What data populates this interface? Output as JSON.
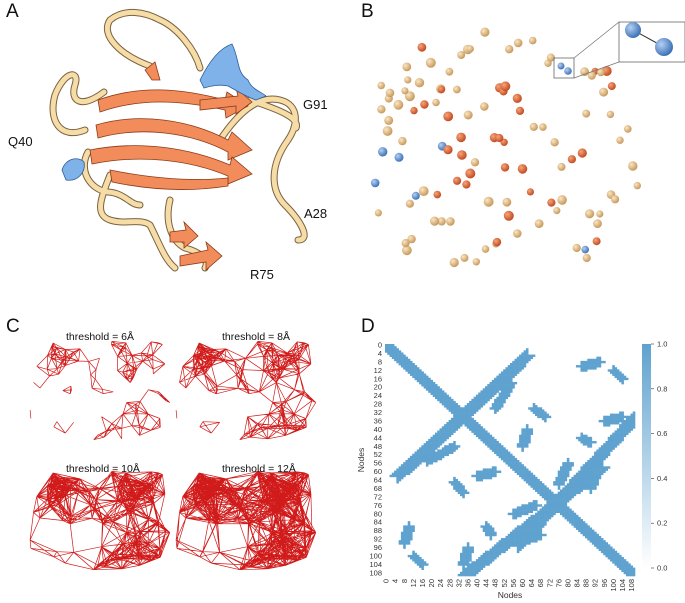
{
  "panels": {
    "a": {
      "letter": "A",
      "residues": [
        "G91",
        "Q40",
        "A28",
        "R75"
      ]
    },
    "b": {
      "letter": "B"
    },
    "c": {
      "letter": "C",
      "thresholds": [
        "threshold = 6Å",
        "threshold = 8Å",
        "threshold = 10Å",
        "threshold = 12Å"
      ]
    },
    "d": {
      "letter": "D"
    }
  },
  "colors": {
    "helix": "#7fb2e8",
    "sheet": "#f28c5a",
    "coil": "#f6dca6",
    "network": "#d11a1a",
    "heatmap": "#5fa2cf",
    "node_tan": "#d9b47f",
    "node_orange": "#e06a3a",
    "node_blue": "#6f9fd8"
  },
  "chart_data": {
    "type": "heatmap",
    "title": "",
    "xlabel": "Nodes",
    "ylabel": "Nodes",
    "n_nodes": 110,
    "x_ticks": [
      "0",
      "4",
      "8",
      "12",
      "16",
      "20",
      "24",
      "28",
      "32",
      "36",
      "40",
      "44",
      "48",
      "52",
      "56",
      "60",
      "64",
      "68",
      "72",
      "76",
      "80",
      "84",
      "88",
      "92",
      "96",
      "100",
      "104",
      "108"
    ],
    "y_ticks": [
      "0",
      "4",
      "8",
      "12",
      "16",
      "20",
      "24",
      "28",
      "32",
      "36",
      "40",
      "44",
      "48",
      "52",
      "56",
      "60",
      "64",
      "68",
      "72",
      "76",
      "80",
      "84",
      "88",
      "92",
      "96",
      "100",
      "104",
      "108"
    ],
    "colorbar_ticks": [
      "0.0",
      "0.2",
      "0.4",
      "0.6",
      "0.8",
      "1.0"
    ],
    "value_range": [
      0,
      1
    ],
    "contact_segments": [
      {
        "from": [
          0,
          0
        ],
        "to": [
          109,
          109
        ],
        "width": 3
      },
      {
        "from": [
          5,
          62
        ],
        "to": [
          58,
          10
        ],
        "width": 3
      },
      {
        "from": [
          35,
          109
        ],
        "to": [
          95,
          58
        ],
        "width": 3
      },
      {
        "from": [
          18,
          55
        ],
        "to": [
          30,
          48
        ],
        "width": 2
      },
      {
        "from": [
          86,
          10
        ],
        "to": [
          94,
          8
        ],
        "width": 2
      },
      {
        "from": [
          96,
          36
        ],
        "to": [
          104,
          34
        ],
        "width": 2
      },
      {
        "from": [
          40,
          62
        ],
        "to": [
          48,
          60
        ],
        "width": 2
      },
      {
        "from": [
          56,
          80
        ],
        "to": [
          66,
          76
        ],
        "width": 2
      },
      {
        "from": [
          62,
          92
        ],
        "to": [
          68,
          90
        ],
        "width": 2
      },
      {
        "from": [
          12,
          100
        ],
        "to": [
          16,
          104
        ],
        "width": 2
      },
      {
        "from": [
          30,
          65
        ],
        "to": [
          34,
          70
        ],
        "width": 2
      },
      {
        "from": [
          44,
          86
        ],
        "to": [
          46,
          90
        ],
        "width": 2
      }
    ]
  }
}
